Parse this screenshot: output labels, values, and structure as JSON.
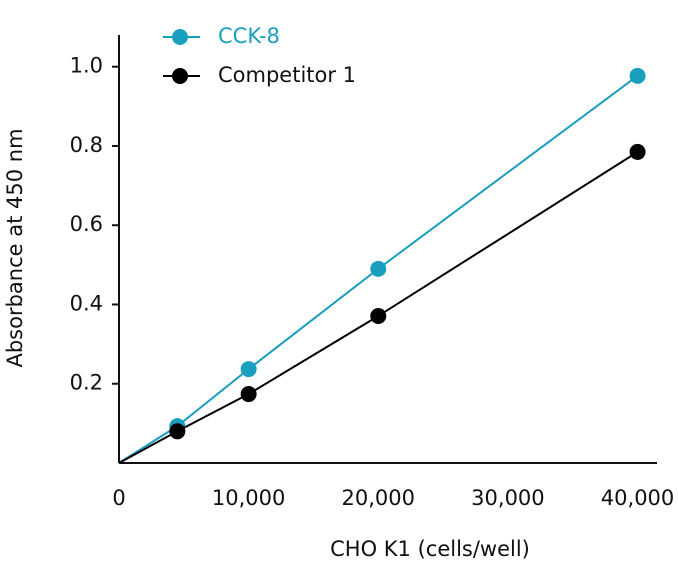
{
  "chart_data": {
    "type": "line",
    "x_label": "CHO K1 (cells/well)",
    "y_label": "Absorbance at 450 nm",
    "series": [
      {
        "name": "CCK-8",
        "color": "#1a9fbf",
        "x": [
          0,
          4500,
          10000,
          20000,
          40000
        ],
        "values": [
          0,
          0.093,
          0.237,
          0.49,
          0.977
        ]
      },
      {
        "name": "Competitor 1",
        "color": "#000000",
        "x": [
          0,
          4500,
          10000,
          20000,
          40000
        ],
        "values": [
          0,
          0.08,
          0.174,
          0.371,
          0.785
        ]
      }
    ],
    "xlim": [
      0,
      41500
    ],
    "ylim": [
      0,
      1.08
    ],
    "xticks": [
      0,
      {
        "value": 10000,
        "label": "10,000"
      },
      {
        "value": 20000,
        "label": "20,000"
      },
      {
        "value": 30000,
        "label": "30,000"
      },
      {
        "value": 40000,
        "label": "40,000"
      }
    ],
    "yticks": [
      0.2,
      0.4,
      0.6,
      0.8,
      {
        "value": 1,
        "label": "1.0"
      }
    ],
    "legend": "top-left"
  }
}
